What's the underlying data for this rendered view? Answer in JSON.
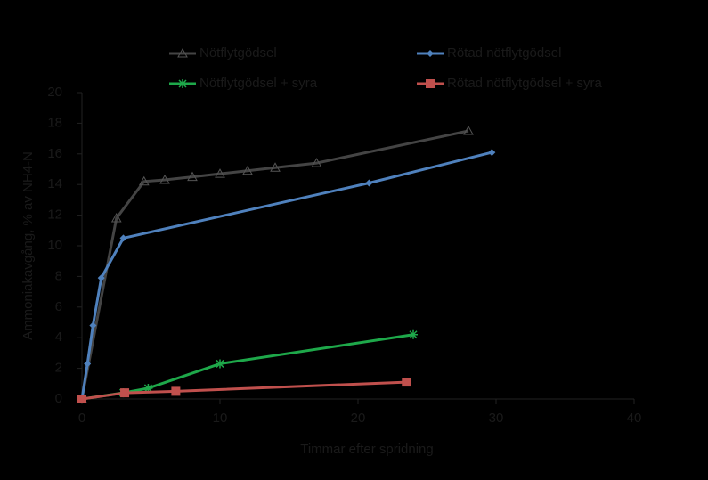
{
  "chart_data": {
    "type": "line",
    "xlabel": "Timmar efter spridning",
    "ylabel": "Ammoniakavgång, % av NH4-N",
    "xlim": [
      0,
      40
    ],
    "xticks": [
      0,
      10,
      20,
      30,
      40
    ],
    "ylim": [
      0,
      20
    ],
    "yticks": [
      0,
      2,
      4,
      6,
      8,
      10,
      12,
      14,
      16,
      18,
      20
    ],
    "series": [
      {
        "name": "Nötflytgödsel",
        "color": "#111111",
        "marker": "triangle",
        "x": [
          0,
          2.5,
          4.5,
          6,
          8,
          10,
          12,
          14,
          17,
          28
        ],
        "values": [
          0,
          11.8,
          14.2,
          14.3,
          14.5,
          14.7,
          14.9,
          15.1,
          15.4,
          17.5
        ]
      },
      {
        "name": "Rötad nötflytgödsel",
        "color": "#4f81bd",
        "marker": "diamond",
        "x": [
          0,
          0.4,
          0.8,
          1.4,
          3,
          20.8,
          29.7
        ],
        "values": [
          0,
          2.3,
          4.8,
          7.9,
          10.5,
          14.1,
          16.1
        ]
      },
      {
        "name": "Nötflytgödsel + syra",
        "color": "#1ea84a",
        "marker": "star",
        "x": [
          0,
          3,
          4.8,
          10,
          24
        ],
        "values": [
          0,
          0.4,
          0.7,
          2.3,
          4.2
        ]
      },
      {
        "name": "Rötad nötflytgödsel + syra",
        "color": "#c0504d",
        "marker": "square",
        "x": [
          0,
          3.1,
          6.8,
          23.5
        ],
        "values": [
          0,
          0.4,
          0.5,
          1.1
        ]
      }
    ]
  }
}
